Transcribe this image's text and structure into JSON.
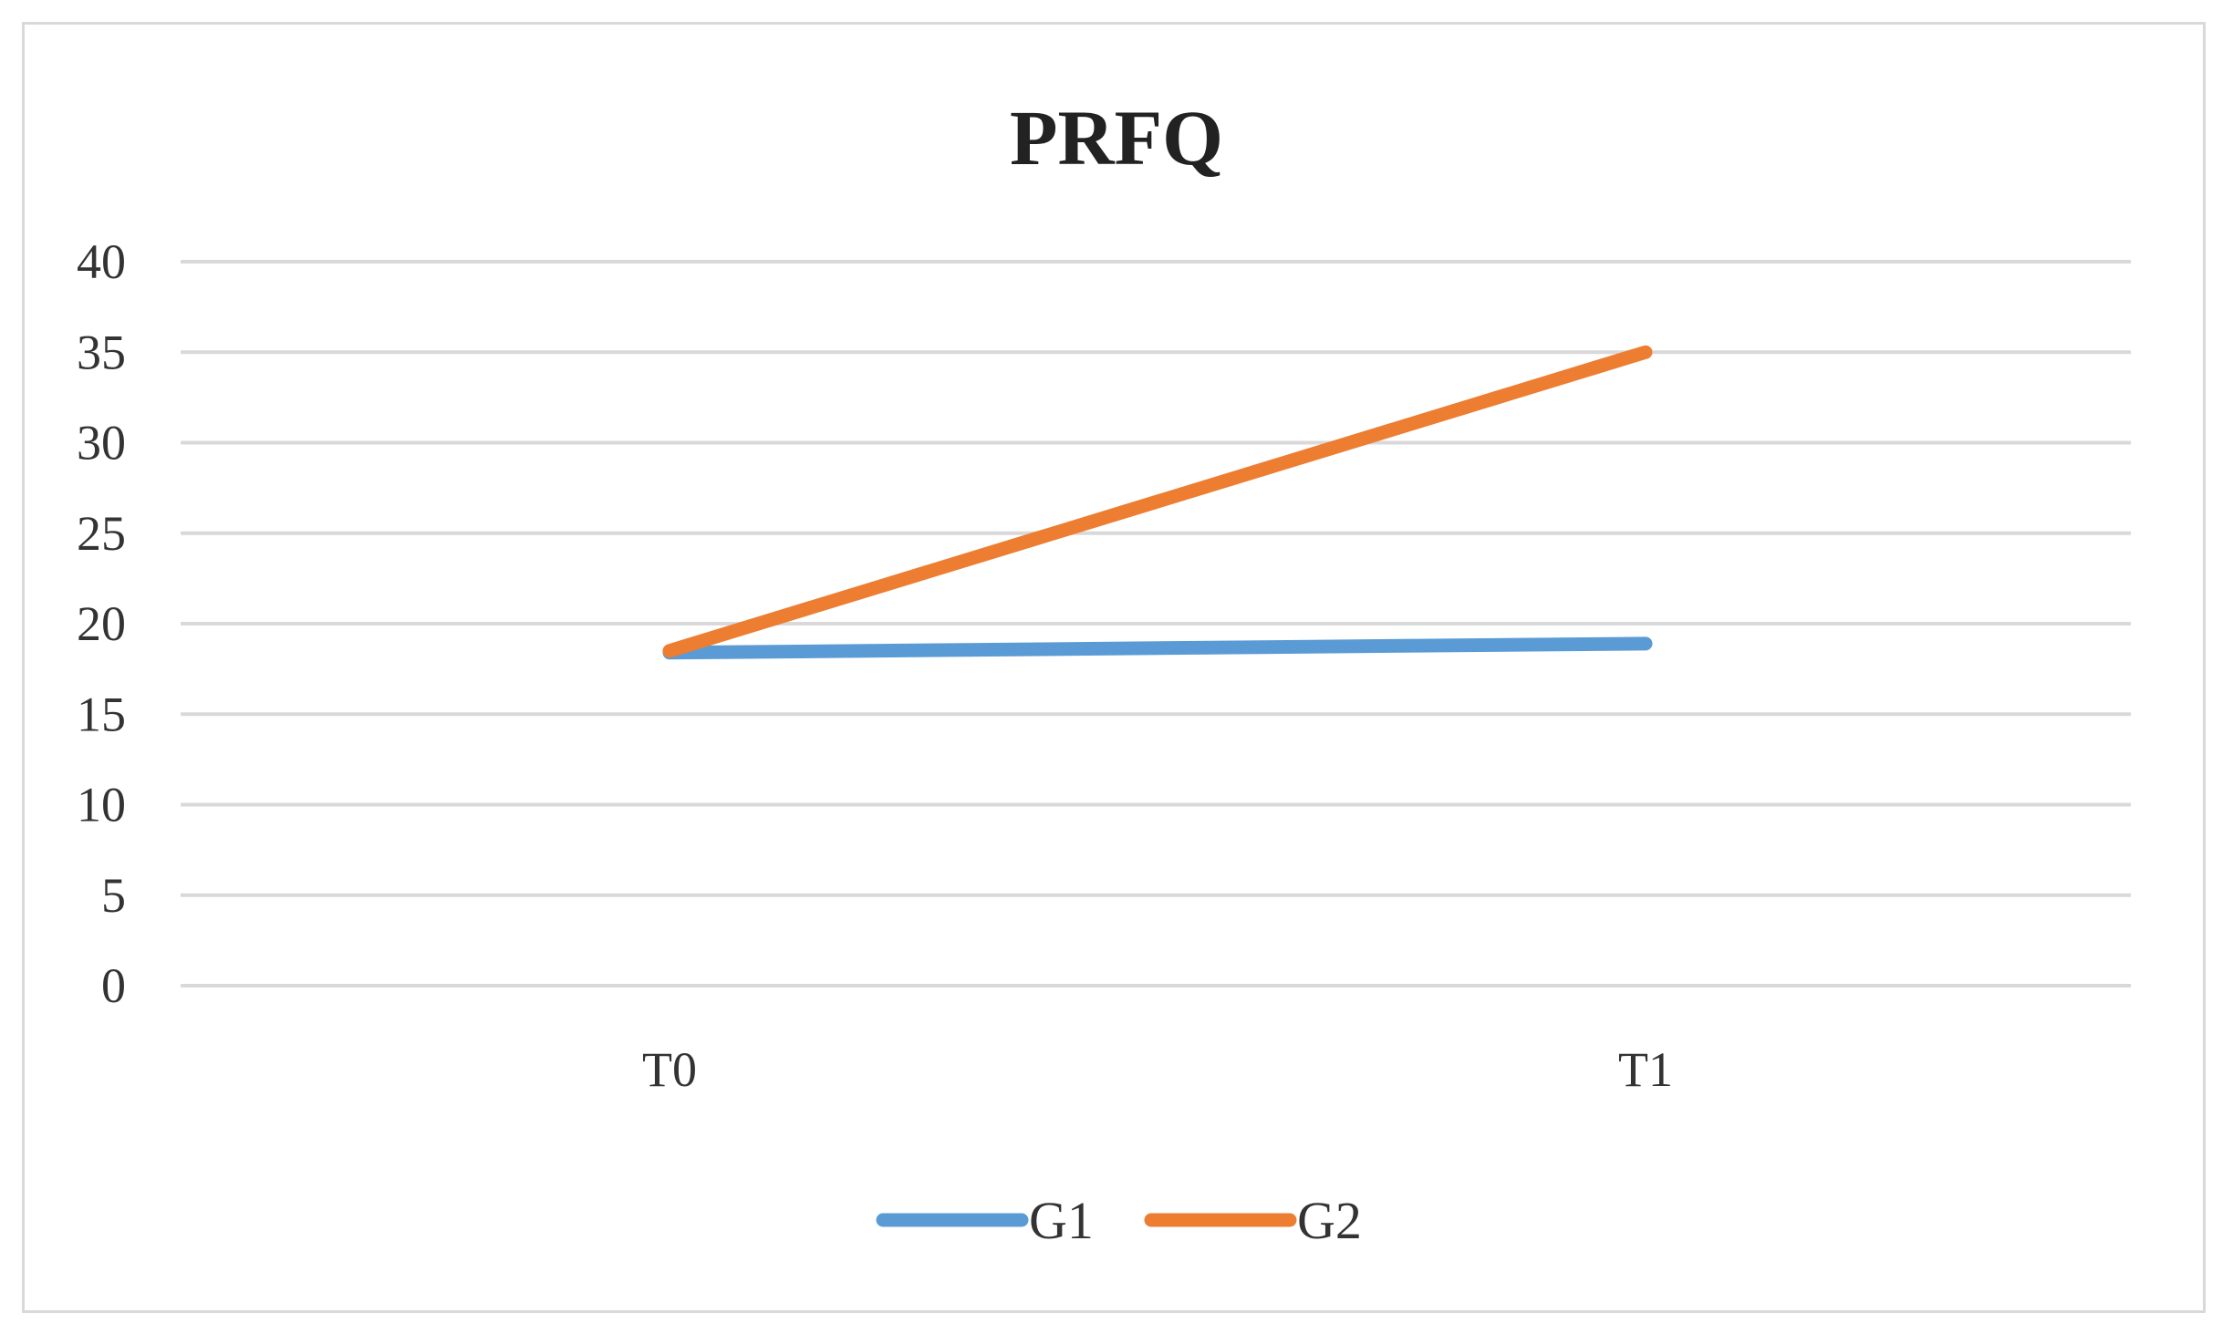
{
  "chart_data": {
    "type": "line",
    "title": "PRFQ",
    "categories": [
      "T0",
      "T1"
    ],
    "series": [
      {
        "name": "G1",
        "values": [
          18.4,
          18.9
        ],
        "color": "#5b9bd5"
      },
      {
        "name": "G2",
        "values": [
          18.5,
          35.0
        ],
        "color": "#ed7d31"
      }
    ],
    "ylim": [
      0,
      40
    ],
    "yticks": [
      0,
      5,
      10,
      15,
      20,
      25,
      30,
      35,
      40
    ],
    "xlabel": "",
    "ylabel": "",
    "grid": true,
    "legend_position": "bottom"
  }
}
